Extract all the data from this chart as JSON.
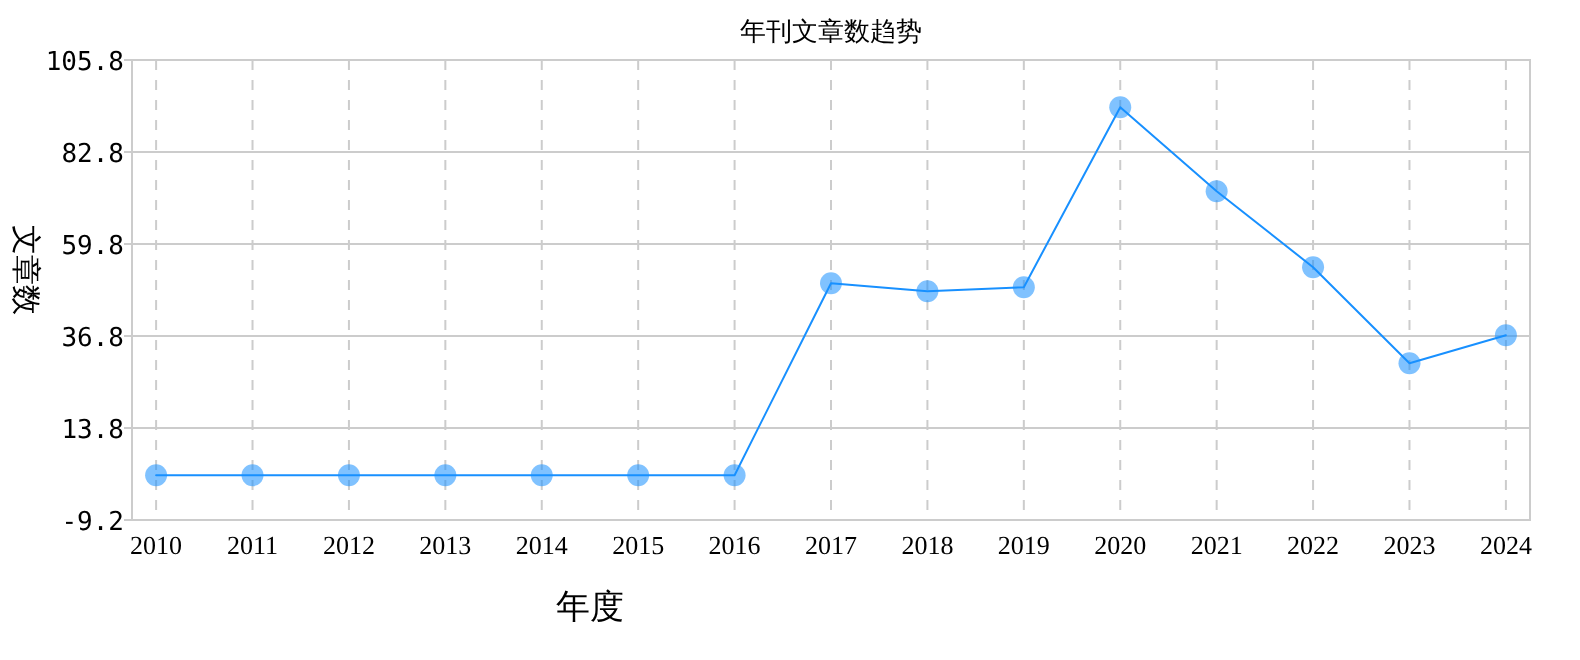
{
  "chart_data": {
    "type": "line",
    "title": "年刊文章数趋势",
    "xlabel": "年度",
    "ylabel": "文章数",
    "categories": [
      "2010",
      "2011",
      "2012",
      "2013",
      "2014",
      "2015",
      "2016",
      "2017",
      "2018",
      "2019",
      "2020",
      "2021",
      "2022",
      "2023",
      "2024"
    ],
    "series": [
      {
        "color": "#1890ff",
        "values": [
          2,
          2,
          2,
          2,
          2,
          2,
          2,
          50,
          48,
          49,
          94,
          73,
          54,
          30,
          37
        ]
      }
    ],
    "ylim": [
      -9.2,
      105.8
    ],
    "yticks": [
      -9.2,
      13.8,
      36.8,
      59.8,
      82.8,
      105.8
    ],
    "grid": true,
    "marker": "circle",
    "line_style": "solid"
  }
}
